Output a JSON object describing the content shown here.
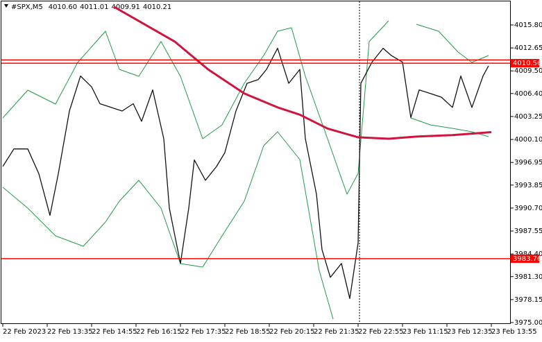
{
  "chart_data": {
    "type": "line",
    "symbol": "#SPX,M5",
    "ohlc": [
      {
        "value": 4010.6,
        "label": "4010.60"
      },
      {
        "value": 4011.01,
        "label": "4011.01"
      },
      {
        "value": 4009.91,
        "label": "4009.91"
      },
      {
        "value": 4010.21,
        "label": "4010.21"
      }
    ],
    "xlim": [
      0,
      183
    ],
    "ylim": [
      3975.0,
      4019.22
    ],
    "xticks": [
      {
        "value": 0,
        "label": "22 Feb 2023"
      },
      {
        "value": 16,
        "label": "22 Feb 13:35"
      },
      {
        "value": 32,
        "label": "22 Feb 14:55"
      },
      {
        "value": 48,
        "label": "22 Feb 16:15"
      },
      {
        "value": 64,
        "label": "22 Feb 17:35"
      },
      {
        "value": 80,
        "label": "22 Feb 18:55"
      },
      {
        "value": 96,
        "label": "22 Feb 20:15"
      },
      {
        "value": 112,
        "label": "22 Feb 21:35"
      },
      {
        "value": 128,
        "label": "22 Feb 22:55"
      },
      {
        "value": 144,
        "label": "23 Feb 11:15"
      },
      {
        "value": 160,
        "label": "23 Feb 12:35"
      },
      {
        "value": 176,
        "label": "23 Feb 13:55"
      }
    ],
    "yticks": [
      {
        "value": 4015.8,
        "label": "4015.80"
      },
      {
        "value": 4012.65,
        "label": "4012.65"
      },
      {
        "value": 4009.5,
        "label": "4009.50"
      },
      {
        "value": 4006.4,
        "label": "4006.40"
      },
      {
        "value": 4003.25,
        "label": "4003.25"
      },
      {
        "value": 4000.1,
        "label": "4000.10"
      },
      {
        "value": 3996.95,
        "label": "3996.95"
      },
      {
        "value": 3993.85,
        "label": "3993.85"
      },
      {
        "value": 3990.7,
        "label": "3990.70"
      },
      {
        "value": 3987.55,
        "label": "3987.55"
      },
      {
        "value": 3984.4,
        "label": "3984.40"
      },
      {
        "value": 3981.3,
        "label": "3981.30"
      },
      {
        "value": 3978.15,
        "label": "3978.15"
      },
      {
        "value": 3975.0,
        "label": "3975.00"
      }
    ],
    "levels": [
      {
        "value": 4011.01
      },
      {
        "value": 4010.56,
        "label": "4010.56"
      },
      {
        "value": 3983.76,
        "label": "3983.76"
      }
    ],
    "level_color": "#ff0000",
    "series": [
      {
        "color": "#1f9a45",
        "width": 1,
        "x": [
          0,
          9,
          19,
          27,
          37,
          42,
          49,
          57,
          64,
          72,
          79,
          87,
          94,
          99,
          104,
          109,
          117,
          124,
          128,
          132,
          139,
          145,
          149,
          157,
          164,
          169,
          175
        ],
        "values": [
          4003.05,
          4006.86,
          4004.96,
          4010.66,
          4014.94,
          4009.71,
          4008.76,
          4013.52,
          4008.76,
          4000.2,
          4002.1,
          4007.81,
          4011.61,
          4014.94,
          4015.42,
          4008.76,
          4000.2,
          3992.59,
          3995.45,
          4013.52,
          4016.37,
          null,
          4015.89,
          4014.94,
          4012.09,
          4010.66,
          4011.61
        ]
      },
      {
        "color": "#1f9a45",
        "width": 1,
        "x": [
          0,
          9,
          19,
          29,
          37,
          42,
          49,
          57,
          64,
          72,
          79,
          87,
          94,
          99,
          107,
          114,
          119,
          130,
          147,
          154,
          162,
          169,
          175
        ],
        "values": [
          3993.55,
          3990.69,
          3986.89,
          3985.46,
          3988.79,
          3991.64,
          3994.5,
          3990.69,
          3983.08,
          3982.61,
          3986.89,
          3991.64,
          3999.25,
          4001.15,
          3997.35,
          3982.13,
          3975.48,
          null,
          4003.05,
          4002.1,
          4001.63,
          4001.15,
          4000.49
        ]
      },
      {
        "color": "#111111",
        "width": 1.3,
        "x": [
          0,
          4,
          9,
          13,
          17,
          20,
          24,
          28,
          32,
          35,
          39,
          43,
          47,
          50,
          54,
          58,
          60,
          64,
          67,
          69,
          73,
          77,
          80,
          84,
          88,
          92,
          95,
          99,
          103,
          107,
          109,
          113,
          115,
          118,
          122,
          125,
          128,
          129,
          133,
          137,
          140,
          144,
          147,
          150,
          154,
          158,
          162,
          165,
          169,
          173,
          175
        ],
        "values": [
          3996.4,
          3998.8,
          3998.8,
          3995.4,
          3989.7,
          3995.4,
          4004.0,
          4008.8,
          4007.3,
          4005.0,
          4004.5,
          4004.0,
          4005.0,
          4002.6,
          4006.9,
          4000.2,
          3990.7,
          3983.1,
          3990.7,
          3997.3,
          3994.5,
          3996.4,
          3998.3,
          4004.0,
          4007.8,
          4008.3,
          4009.7,
          4012.6,
          4007.8,
          4009.7,
          4000.2,
          3992.6,
          3985.0,
          3981.2,
          3983.1,
          3978.3,
          3985.9,
          4007.8,
          4010.7,
          4012.6,
          4011.6,
          4010.7,
          4003.1,
          4006.9,
          4006.4,
          4005.9,
          4004.5,
          4008.8,
          4004.5,
          4008.8,
          4010.2
        ]
      },
      {
        "color": "#d0143c",
        "width": 3,
        "x": [
          40,
          62,
          74,
          87,
          99,
          107,
          117,
          128,
          139,
          149,
          162,
          176
        ],
        "values": [
          4018.3,
          4013.5,
          4009.7,
          4006.4,
          4004.5,
          4003.5,
          4001.6,
          4000.4,
          4000.2,
          4000.5,
          4000.7,
          4001.1
        ]
      }
    ]
  }
}
